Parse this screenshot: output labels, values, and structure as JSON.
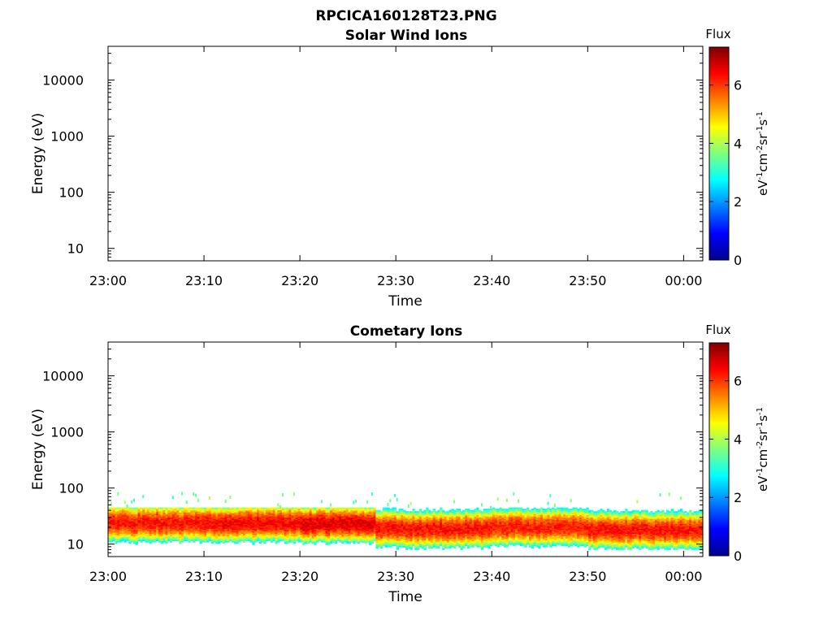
{
  "figure": {
    "filename": "RPCICA160128T23.PNG"
  },
  "chart_data": [
    {
      "type": "heatmap",
      "title": "Solar Wind Ions",
      "xlabel": "Time",
      "ylabel": "Energy (eV)",
      "x_ticks": [
        "23:00",
        "23:10",
        "23:20",
        "23:30",
        "23:40",
        "23:50",
        "00:00"
      ],
      "x_range": [
        "23:00",
        "00:02"
      ],
      "y_scale": "log",
      "y_ticks": [
        10,
        100,
        1000,
        10000
      ],
      "y_range": [
        6,
        40000
      ],
      "colorbar": {
        "title": "Flux",
        "label": "eV-1cm-2sr-1s-1",
        "ticks": [
          0,
          2,
          4,
          6
        ],
        "range": [
          0,
          7.3
        ],
        "colormap": "jet"
      },
      "values": []
    },
    {
      "type": "heatmap",
      "title": "Cometary Ions",
      "xlabel": "Time",
      "ylabel": "Energy (eV)",
      "x_ticks": [
        "23:00",
        "23:10",
        "23:20",
        "23:30",
        "23:40",
        "23:50",
        "00:00"
      ],
      "x_range": [
        "23:00",
        "00:02"
      ],
      "y_scale": "log",
      "y_ticks": [
        10,
        100,
        1000,
        10000
      ],
      "y_range": [
        6,
        40000
      ],
      "colorbar": {
        "title": "Flux",
        "label": "eV-1cm-2sr-1s-1",
        "ticks": [
          0,
          2,
          4,
          6
        ],
        "range": [
          0,
          7.3
        ],
        "colormap": "jet"
      },
      "band": {
        "segments": [
          {
            "from": "23:00",
            "to": "23:10",
            "center_eV": 24,
            "peak_flux": 6.3
          },
          {
            "from": "23:10",
            "to": "23:20",
            "center_eV": 24,
            "peak_flux": 6.4
          },
          {
            "from": "23:20",
            "to": "23:28",
            "center_eV": 23,
            "peak_flux": 6.6
          },
          {
            "from": "23:28",
            "to": "23:40",
            "center_eV": 19,
            "peak_flux": 6.3
          },
          {
            "from": "23:40",
            "to": "23:50",
            "center_eV": 20,
            "peak_flux": 6.2
          },
          {
            "from": "23:50",
            "to": "00:02",
            "center_eV": 18,
            "peak_flux": 6.3
          }
        ],
        "energy_range_eV": [
          8,
          45
        ],
        "sparse_max_eV": 80
      }
    }
  ]
}
